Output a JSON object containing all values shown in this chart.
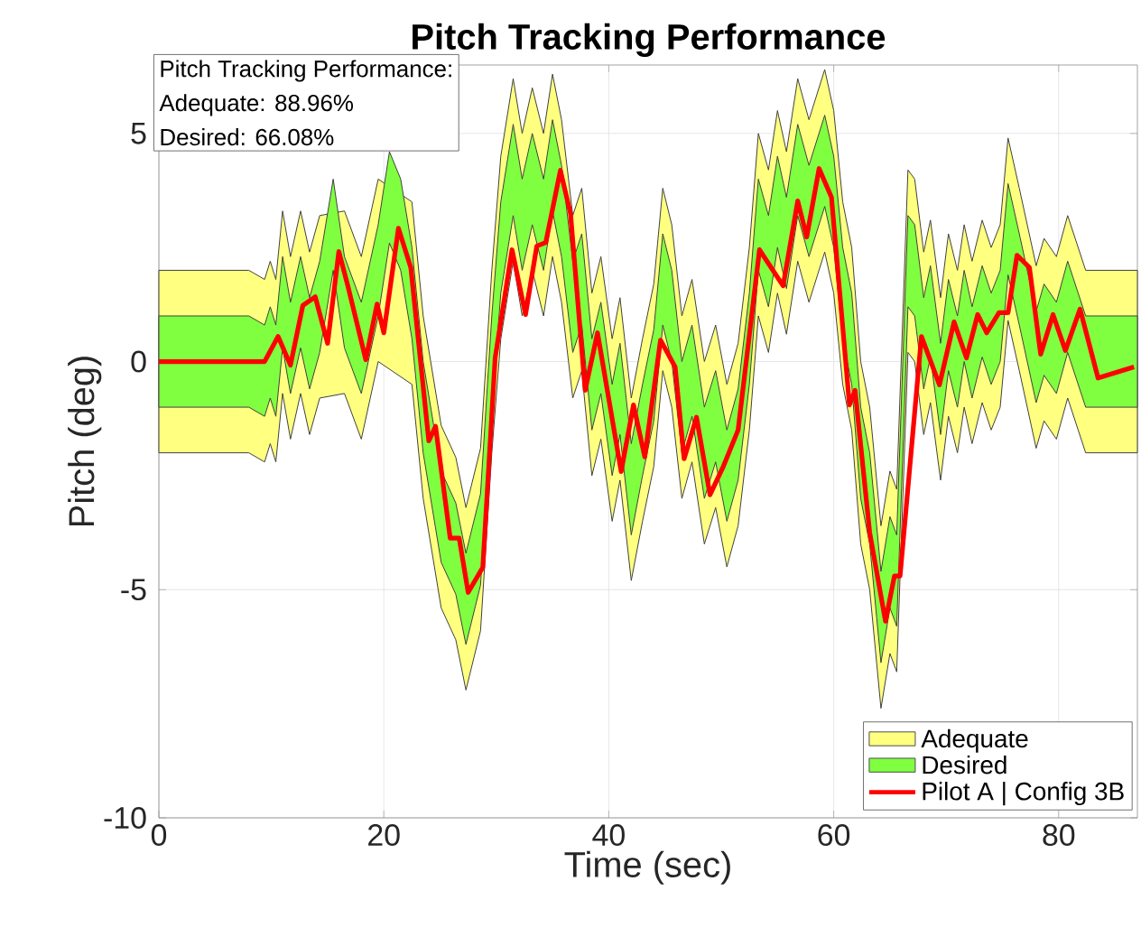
{
  "chart_data": {
    "type": "line",
    "title": "Pitch Tracking Performance",
    "xlabel": "Time (sec)",
    "ylabel": "Pitch (deg)",
    "xlim": [
      0,
      87
    ],
    "ylim": [
      -10,
      6.5
    ],
    "xticks": [
      0,
      20,
      40,
      60,
      80
    ],
    "yticks": [
      -10,
      -5,
      0,
      5
    ],
    "grid": true,
    "legend": "bottom right",
    "annotations": [
      "Pitch Tracking Performance:",
      "Adequate:   88.96%",
      "Desired:     66.08%"
    ],
    "series": [
      {
        "name": "Adequate",
        "color": "#ffff80",
        "x": [
          0,
          8,
          9.4,
          9.9,
          10.4,
          11,
          11.7,
          12.6,
          13.4,
          14.3,
          15.5,
          16.5,
          18,
          19.5,
          20.5,
          21.5,
          22.5,
          23.5,
          25.1,
          26.4,
          27.3,
          28.6,
          29.6,
          30.4,
          31.5,
          32.3,
          33.2,
          34.2,
          35,
          35.8,
          36.8,
          37.6,
          38.5,
          39.3,
          40.3,
          41,
          42,
          43,
          44,
          44.8,
          45.6,
          46.5,
          47.4,
          48.5,
          49.5,
          50.5,
          51.5,
          52.5,
          53.3,
          54.2,
          55,
          55.8,
          56.8,
          57.8,
          59.2,
          60,
          60.8,
          61.6,
          62.4,
          63.2,
          64.2,
          65,
          65.6,
          66.6,
          67.2,
          68,
          68.6,
          69.5,
          70.2,
          71,
          71.6,
          72.3,
          73.2,
          74,
          74.8,
          75.5,
          76.5,
          78,
          78.7,
          79.8,
          80.8,
          82.4,
          87
        ],
        "values": [
          null,
          null,
          null,
          null,
          null,
          null,
          null,
          null,
          null,
          null,
          null,
          null,
          null,
          null,
          null,
          null,
          null,
          null,
          null,
          null,
          null,
          null,
          null,
          null,
          null,
          null,
          null,
          null,
          null,
          null,
          null,
          null,
          null,
          null,
          null,
          null,
          null,
          null,
          null,
          null,
          null,
          null,
          null,
          null,
          null,
          null,
          null,
          null,
          null,
          null,
          null,
          null,
          null,
          null,
          null,
          null,
          null,
          null,
          null,
          null,
          null,
          null,
          null,
          null,
          null,
          null,
          null,
          null,
          null,
          null,
          null,
          null,
          null,
          null,
          null,
          null,
          null,
          null,
          null,
          null,
          null,
          null,
          null
        ],
        "lower": [
          -2,
          -2,
          -2.2,
          -1.8,
          -2.2,
          -0.7,
          -1.7,
          -0.7,
          -1.6,
          -0.8,
          null,
          -0.7,
          -1.7,
          0,
          null,
          null,
          -0.5,
          -3,
          -5.4,
          -6.1,
          -7.2,
          -5.9,
          -2,
          0.5,
          2.2,
          1,
          2,
          1,
          2.3,
          1.3,
          -0.8,
          -0.2,
          -2.5,
          -1.7,
          -3.5,
          -2.6,
          -4.8,
          -3.5,
          -2.3,
          -0.2,
          -1,
          -3,
          -2.2,
          -4,
          -3.2,
          -4.5,
          -3.6,
          -1.5,
          1,
          0.2,
          1.5,
          0.6,
          2.2,
          1.3,
          2.4,
          1.5,
          -0.5,
          -1.5,
          -4,
          -5,
          -7.6,
          -6.4,
          -6.8,
          0.2,
          0,
          -1.6,
          -0.9,
          -2.6,
          -1.2,
          -2,
          -1,
          -1.8,
          -0.9,
          -1.5,
          -1,
          0.9,
          -0.2,
          -1.9,
          -1.3,
          -1.7,
          -0.8,
          -2,
          -2
        ],
        "upper": [
          2,
          2,
          1.8,
          2.2,
          1.8,
          3.3,
          2.3,
          3.3,
          2.4,
          3.2,
          null,
          3.3,
          2.3,
          4,
          null,
          null,
          3.5,
          1,
          -1.4,
          -2.1,
          -3.2,
          -1.9,
          2,
          4.5,
          6.2,
          5,
          6,
          5,
          6.3,
          5.3,
          3.2,
          3.8,
          1.5,
          2.3,
          0.5,
          1.4,
          -0.8,
          0.5,
          1.7,
          3.8,
          3,
          1,
          1.8,
          0,
          0.8,
          -0.5,
          0.4,
          2.5,
          5,
          4.2,
          5.5,
          4.6,
          6.2,
          5.3,
          6.4,
          5.5,
          3.5,
          2.5,
          0,
          -1,
          -3.6,
          -2.4,
          -2.8,
          4.2,
          4,
          2.4,
          3.1,
          1.4,
          2.8,
          2,
          3,
          2.2,
          3.1,
          2.5,
          3,
          4.9,
          3.8,
          2.1,
          2.7,
          2.3,
          3.2,
          2,
          2
        ]
      },
      {
        "name": "Desired",
        "color": "#80ff40",
        "x": [
          0,
          8,
          9.4,
          9.9,
          10.4,
          11,
          11.7,
          12.6,
          13.4,
          14.3,
          15.5,
          16.5,
          18,
          19.5,
          20.5,
          21.5,
          22.5,
          23.5,
          25.1,
          26.4,
          27.3,
          28.6,
          29.6,
          30.4,
          31.5,
          32.3,
          33.2,
          34.2,
          35,
          35.8,
          36.8,
          37.6,
          38.5,
          39.3,
          40.3,
          41,
          42,
          43,
          44,
          44.8,
          45.6,
          46.5,
          47.4,
          48.5,
          49.5,
          50.5,
          51.5,
          52.5,
          53.3,
          54.2,
          55,
          55.8,
          56.8,
          57.8,
          59.2,
          60,
          60.8,
          61.6,
          62.4,
          63.2,
          64.2,
          65,
          65.6,
          66.6,
          67.2,
          68,
          68.6,
          69.5,
          70.2,
          71,
          71.6,
          72.3,
          73.2,
          74,
          74.8,
          75.5,
          76.5,
          78,
          78.7,
          79.8,
          80.8,
          82.4,
          87
        ],
        "values": [
          null,
          null,
          null,
          null,
          null,
          null,
          null,
          null,
          null,
          null,
          null,
          null,
          null,
          null,
          null,
          null,
          null,
          null,
          null,
          null,
          null,
          null,
          null,
          null,
          null,
          null,
          null,
          null,
          null,
          null,
          null,
          null,
          null,
          null,
          null,
          null,
          null,
          null,
          null,
          null,
          null,
          null,
          null,
          null,
          null,
          null,
          null,
          null,
          null,
          null,
          null,
          null,
          null,
          null,
          null,
          null,
          null,
          null,
          null,
          null,
          null,
          null,
          null,
          null,
          null,
          null,
          null,
          null,
          null,
          null,
          null,
          null,
          null,
          null,
          null,
          null,
          null,
          null,
          null,
          null,
          null,
          null,
          null
        ],
        "lower": [
          -1,
          -1,
          -1.2,
          -0.8,
          -1.2,
          0.3,
          -0.7,
          0.3,
          -0.6,
          0.2,
          2,
          0.3,
          -0.7,
          1,
          2.6,
          2,
          0.5,
          -2,
          -4.4,
          -5.1,
          -6.2,
          -4.9,
          -1,
          1.5,
          3.2,
          2,
          3,
          2,
          3.3,
          2.3,
          0.2,
          0.8,
          -1.5,
          -0.7,
          -2.5,
          -1.6,
          -3.8,
          -2.5,
          -1.3,
          0.8,
          0,
          -2,
          -1.2,
          -3,
          -2.2,
          -3.5,
          -2.6,
          -0.5,
          2,
          1.2,
          2.5,
          1.6,
          3.2,
          2.3,
          3.4,
          2.5,
          0.5,
          -0.5,
          -3,
          -4,
          -6.6,
          -5.4,
          -5.8,
          1.2,
          1,
          -0.6,
          0.1,
          -1.6,
          -0.2,
          -1,
          0,
          -0.8,
          0.1,
          -0.5,
          0,
          1.9,
          0.8,
          -0.9,
          -0.3,
          -0.7,
          0.2,
          -1,
          -1
        ],
        "upper": [
          1,
          1,
          0.8,
          1.2,
          0.8,
          2.3,
          1.3,
          2.3,
          1.4,
          2.2,
          4,
          2.3,
          1.3,
          3,
          4.6,
          4,
          2.5,
          0,
          -2.4,
          -3.1,
          -4.2,
          -2.9,
          1,
          3.5,
          5.2,
          4,
          5,
          4,
          5.3,
          4.3,
          2.2,
          2.8,
          0.5,
          1.3,
          -0.5,
          0.4,
          -1.8,
          -0.5,
          0.7,
          2.8,
          2,
          0,
          0.8,
          -1,
          -0.2,
          -1.5,
          -0.6,
          1.5,
          4,
          3.2,
          4.5,
          3.6,
          5.2,
          4.3,
          5.4,
          4.5,
          2.5,
          1.5,
          -1,
          -2,
          -4.6,
          -3.4,
          -3.8,
          3.2,
          3,
          1.4,
          2.1,
          0.4,
          1.8,
          1,
          2,
          1.2,
          2.1,
          1.5,
          2,
          3.9,
          2.8,
          1.1,
          1.7,
          1.3,
          2.2,
          1,
          1
        ]
      },
      {
        "name": "Pilot A | Config 3B",
        "type": "line",
        "color": "#ff0000",
        "x": [
          0,
          9.4,
          10.6,
          11.7,
          12.8,
          13.9,
          15,
          16,
          16.8,
          18.4,
          19.4,
          20,
          21.3,
          22.4,
          24,
          24.6,
          25.9,
          26.7,
          27.5,
          28.8,
          29.9,
          31.4,
          32.6,
          33.6,
          34.4,
          35.7,
          36.6,
          37.9,
          39,
          41.1,
          42.2,
          43.2,
          44.6,
          45.9,
          46.7,
          47.8,
          49,
          50.2,
          51.5,
          53.4,
          55.5,
          56.8,
          57.6,
          58.7,
          59.8,
          61.4,
          61.9,
          63.2,
          64.6,
          65.4,
          65.9,
          67.8,
          69.4,
          70.7,
          71.8,
          72.8,
          73.6,
          74.7,
          75.5,
          76.3,
          77.4,
          78.4,
          79.5,
          80.6,
          81.9,
          83.5,
          86.7
        ],
        "values": [
          0,
          0,
          0.55,
          -0.08,
          1.23,
          1.42,
          0.4,
          2.41,
          1.66,
          0.04,
          1.26,
          0.63,
          2.92,
          2.06,
          -1.74,
          -1.42,
          -3.87,
          -3.87,
          -5.06,
          -4.51,
          0.08,
          2.45,
          1.03,
          2.53,
          2.61,
          4.19,
          3.24,
          -0.63,
          0.63,
          -2.41,
          -0.95,
          -2.09,
          0.47,
          -0.12,
          -2.13,
          -1.22,
          -2.92,
          -2.29,
          -1.5,
          2.45,
          1.66,
          3.52,
          2.73,
          4.23,
          3.6,
          -0.95,
          -0.63,
          -3.75,
          -5.69,
          -4.7,
          -4.7,
          0.55,
          -0.51,
          0.87,
          0.08,
          1.03,
          0.63,
          1.07,
          1.07,
          2.33,
          2.06,
          0.16,
          1.03,
          0.24,
          1.15,
          -0.36,
          -0.12
        ]
      }
    ]
  }
}
